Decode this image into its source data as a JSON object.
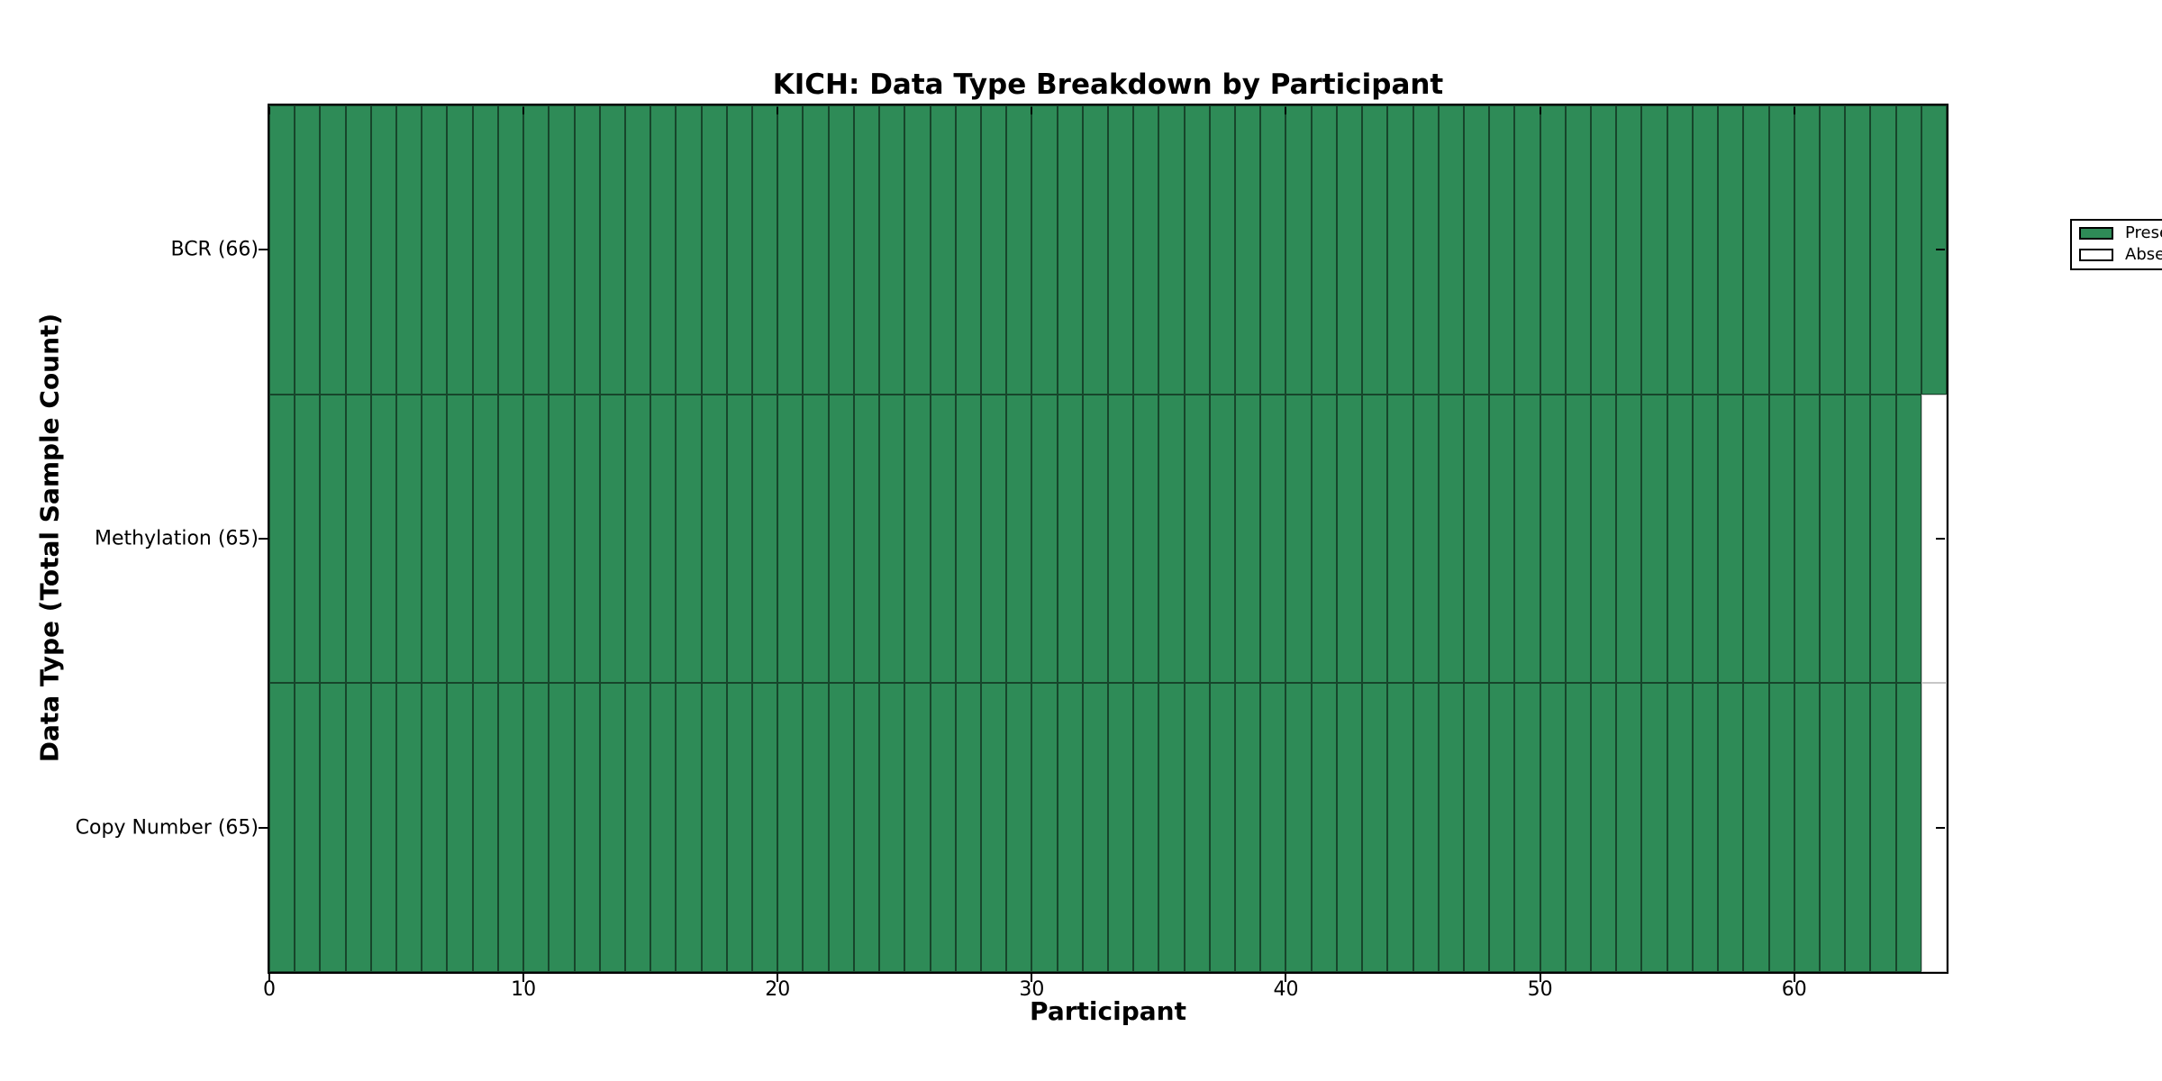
{
  "chart_data": {
    "type": "heatmap",
    "title": "KICH: Data Type Breakdown by Participant",
    "xlabel": "Participant",
    "ylabel": "Data Type (Total Sample Count)",
    "x_ticks": [
      0,
      10,
      20,
      30,
      40,
      50,
      60
    ],
    "x_range": [
      0,
      66
    ],
    "n_participants": 66,
    "rows": [
      {
        "label": "BCR (66)",
        "data_type": "BCR",
        "total_samples": 66,
        "present_count": 66,
        "absent_count": 0,
        "absent_participant_indices": []
      },
      {
        "label": "Methylation (65)",
        "data_type": "Methylation",
        "total_samples": 65,
        "present_count": 65,
        "absent_count": 1,
        "absent_participant_indices": [
          65
        ]
      },
      {
        "label": "Copy Number (65)",
        "data_type": "Copy Number",
        "total_samples": 65,
        "present_count": 65,
        "absent_count": 1,
        "absent_participant_indices": [
          65
        ]
      }
    ],
    "legend": [
      {
        "label": "Present",
        "color": "#2E8B57"
      },
      {
        "label": "Absent",
        "color": "#ffffff"
      }
    ],
    "legend_position": "upper right",
    "colors": {
      "present": "#2E8B57",
      "absent": "#ffffff",
      "cell_edge": "rgba(0,0,0,0.5)"
    },
    "grid": "cell-borders"
  }
}
